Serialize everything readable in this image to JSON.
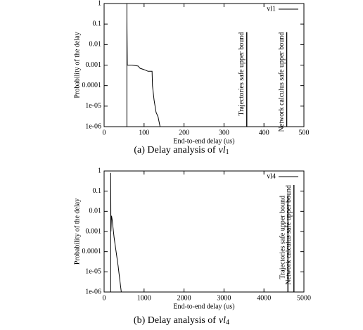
{
  "chart_data": [
    {
      "type": "line",
      "y_scale": "log",
      "ylabel": "Probability of the delay",
      "xlabel": "End-to-end delay (us)",
      "caption": {
        "text": "(a) Delay analysis of",
        "var": "vl",
        "sub": "1"
      },
      "legend": "upper right",
      "xlim": [
        0,
        500
      ],
      "xticks": [
        0,
        100,
        200,
        300,
        400,
        500
      ],
      "ylim": [
        1e-06,
        1
      ],
      "yticks": [
        1,
        0.1,
        0.01,
        0.001,
        0.0001,
        {
          "value": 1e-05,
          "label": "1e-05"
        },
        {
          "value": 1e-06,
          "label": "1e-06"
        }
      ],
      "series": [
        {
          "name": "vl1",
          "color": "#000000",
          "x": [
            57,
            57,
            57,
            58,
            70,
            85,
            90,
            100,
            110,
            120,
            121,
            125,
            130,
            135,
            140
          ],
          "values": [
            1e-06,
            1,
            0.2,
            0.001,
            0.001,
            0.0009,
            0.0007,
            0.0006,
            0.0005,
            0.0005,
            0.0001,
            2e-05,
            5e-06,
            3e-06,
            1e-06
          ]
        }
      ],
      "bounds": [
        {
          "label": "Trajectories safe upper bound",
          "x": 357,
          "y_top": 0.04
        },
        {
          "label": "Network calculus safe upper bound",
          "x": 457,
          "y_top": 0.04
        }
      ]
    },
    {
      "type": "line",
      "y_scale": "log",
      "ylabel": "Probability of the delay",
      "xlabel": "End-to-end delay (us)",
      "caption": {
        "text": "(b) Delay analysis of",
        "var": "vl",
        "sub": "4"
      },
      "legend": "upper right",
      "xlim": [
        0,
        5000
      ],
      "xticks": [
        0,
        1000,
        2000,
        3000,
        4000,
        5000
      ],
      "ylim": [
        1e-06,
        1
      ],
      "yticks": [
        1,
        0.1,
        0.01,
        0.001,
        0.0001,
        {
          "value": 1e-05,
          "label": "1e-05"
        },
        {
          "value": 1e-06,
          "label": "1e-06"
        }
      ],
      "series": [
        {
          "name": "vl4",
          "color": "#000000",
          "x": [
            165,
            165,
            170,
            185,
            200,
            250,
            300,
            350,
            400,
            430
          ],
          "values": [
            1e-06,
            0.8,
            0.001,
            0.006,
            0.004,
            0.0005,
            0.0001,
            2e-05,
            3e-06,
            1e-06
          ]
        }
      ],
      "bounds": [
        {
          "label": "Trajectories safe upper bound",
          "x": 4600,
          "y_top": 0.06
        },
        {
          "label": "Network calculus safe upper bound",
          "x": 4750,
          "y_top": 0.2
        }
      ]
    }
  ]
}
